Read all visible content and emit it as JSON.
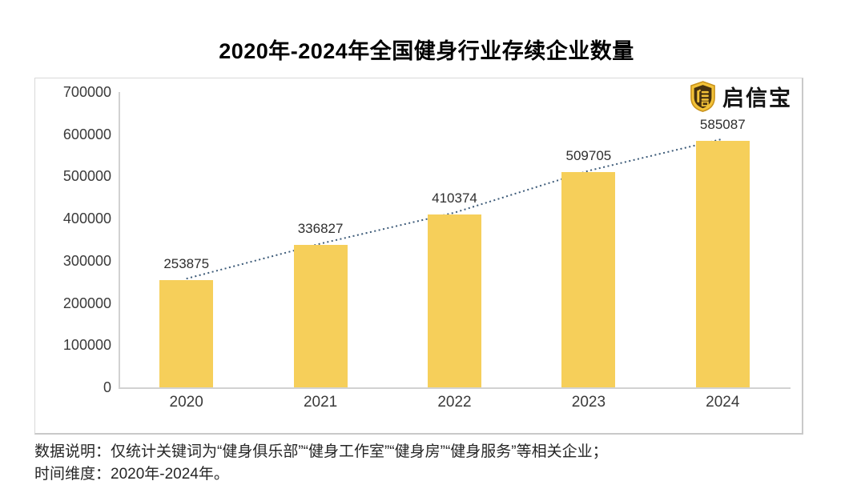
{
  "logo": {
    "text": "启信宝",
    "icon": "qixinbao-shield-icon"
  },
  "chart_data": {
    "type": "bar",
    "title": "2020年-2024年全国健身行业存续企业数量",
    "categories": [
      "2020",
      "2021",
      "2022",
      "2023",
      "2024"
    ],
    "values": [
      253875,
      336827,
      410374,
      509705,
      585087
    ],
    "xlabel": "",
    "ylabel": "",
    "ylim": [
      0,
      700000
    ],
    "y_ticks": [
      0,
      100000,
      200000,
      300000,
      400000,
      500000,
      600000,
      700000
    ],
    "grid": false,
    "legend": "none",
    "data_labels": true,
    "bar_color": "#f6cf5a",
    "trendline": {
      "style": "dotted",
      "color": "#3c5a78"
    },
    "axis_color": "#d2d2d2"
  },
  "footer": {
    "line1": "数据说明：仅统计关键词为“健身俱乐部”“健身工作室”“健身房”“健身服务”等相关企业；",
    "line2": "时间维度：2020年-2024年。"
  }
}
